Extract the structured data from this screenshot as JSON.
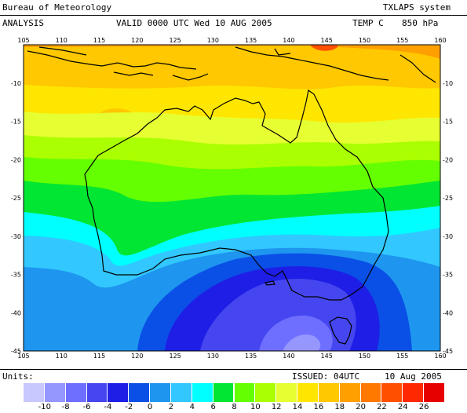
{
  "header": {
    "agency": "Bureau of Meteorology",
    "system": "TXLAPS system",
    "analysis": "ANALYSIS",
    "valid": "VALID  0000 UTC  Wed 10 AUG 2005",
    "field": "TEMP C",
    "level": "850 hPa"
  },
  "footer": {
    "units_label": "Units:",
    "issued": "ISSUED: 04UTC",
    "issued_date": "10 Aug 2005"
  },
  "map": {
    "lon_range": [
      105,
      160
    ],
    "lat_range": [
      -45,
      -5
    ],
    "lon_ticks": [
      "105",
      "110",
      "115",
      "120",
      "125",
      "130",
      "135",
      "140",
      "145",
      "150",
      "155",
      "160"
    ],
    "lat_ticks": [
      "-10",
      "-15",
      "-20",
      "-25",
      "-30",
      "-35",
      "-40",
      "-45"
    ]
  },
  "colorbar": {
    "colors": [
      "#c8c8ff",
      "#9696ff",
      "#6e6eff",
      "#4646f0",
      "#1e1ee6",
      "#0a50e6",
      "#1e96f0",
      "#32c8ff",
      "#00ffff",
      "#00e632",
      "#64ff00",
      "#aaff00",
      "#e6ff32",
      "#ffe600",
      "#ffc800",
      "#ffa000",
      "#ff7800",
      "#ff5000",
      "#ff2800",
      "#e60000"
    ],
    "labels": [
      "-10",
      "-8",
      "-6",
      "-4",
      "-2",
      "0",
      "2",
      "4",
      "6",
      "8",
      "10",
      "12",
      "14",
      "16",
      "18",
      "20",
      "22",
      "24",
      "26"
    ]
  }
}
